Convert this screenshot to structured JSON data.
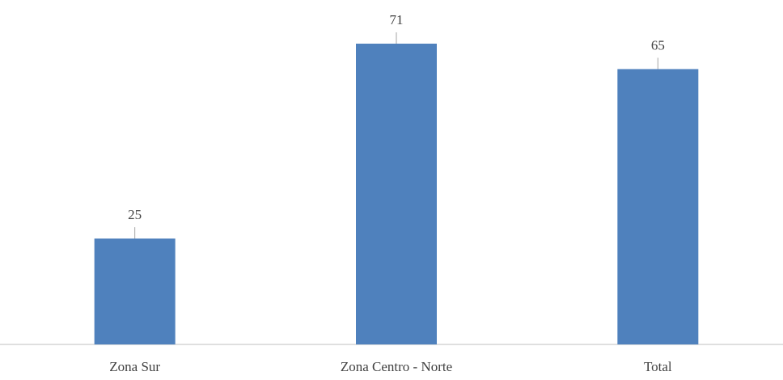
{
  "chart_data": {
    "type": "bar",
    "categories": [
      "Zona Sur",
      "Zona Centro - Norte",
      "Total"
    ],
    "values": [
      25,
      71,
      65
    ],
    "color": "#4f81bd"
  }
}
